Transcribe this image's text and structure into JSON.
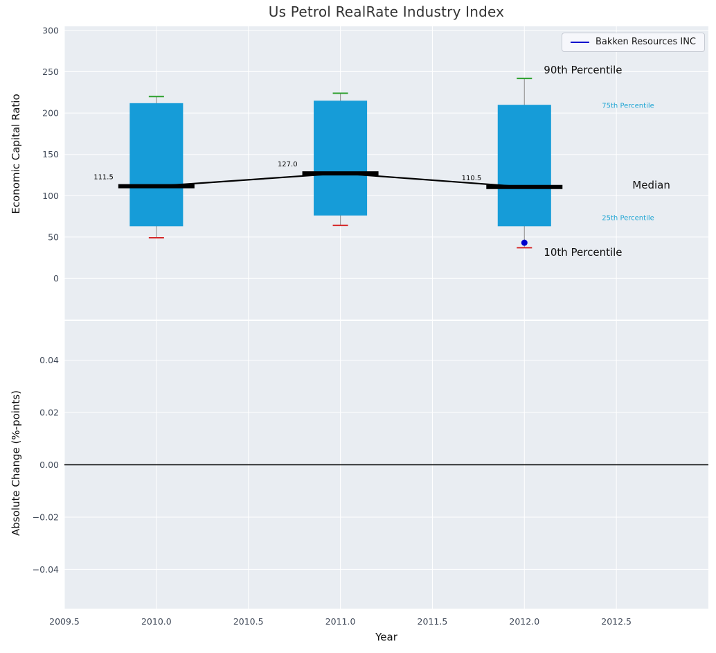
{
  "title": "Us Petrol RealRate Industry Index",
  "legend": {
    "label": "Bakken Resources INC"
  },
  "annotations": {
    "p90": "90th Percentile",
    "p75": "75th Percentile",
    "median": "Median",
    "p25": "25th Percentile",
    "p10": "10th Percentile"
  },
  "colors": {
    "plot_bg": "#e9edf2",
    "grid": "#ffffff",
    "box_fill": "#169cd8",
    "median_line": "#000000",
    "whisker": "#999999",
    "cap_top": "#2ca02c",
    "cap_bottom": "#d62728",
    "company_point": "#0000cd",
    "tick_label": "#414a59",
    "percentile_label": "#1fa5d3",
    "zero_line": "#000000"
  },
  "chart_data": [
    {
      "type": "boxplot",
      "panel": "top",
      "ylabel": "Economic Capital Ratio",
      "x": [
        2010,
        2011,
        2012
      ],
      "p10": [
        49,
        64,
        37
      ],
      "p25": [
        63,
        76,
        63
      ],
      "median": [
        111.5,
        127.0,
        110.5
      ],
      "p75": [
        212,
        215,
        210
      ],
      "p90": [
        220,
        224,
        242
      ],
      "median_labels": [
        "111.5",
        "127.0",
        "110.5"
      ],
      "company_series": {
        "name": "Bakken Resources INC",
        "points": [
          {
            "x": 2012,
            "y": 43
          }
        ]
      },
      "xlim": [
        2009.5,
        2013.0
      ],
      "ylim": [
        -50,
        305
      ],
      "yticks": [
        0,
        50,
        100,
        150,
        200,
        250,
        300
      ],
      "xticks": [
        2009.5,
        2010.0,
        2010.5,
        2011.0,
        2011.5,
        2012.0,
        2012.5
      ],
      "grid": true,
      "legend_position": "upper right"
    },
    {
      "type": "line",
      "panel": "bottom",
      "ylabel": "Absolute Change (%-points)",
      "xlabel": "Year",
      "series": [],
      "zero_line": 0.0,
      "xlim": [
        2009.5,
        2013.0
      ],
      "ylim": [
        -0.055,
        0.055
      ],
      "yticks": [
        -0.04,
        -0.02,
        0.0,
        0.02,
        0.04
      ],
      "xticks": [
        2009.5,
        2010.0,
        2010.5,
        2011.0,
        2011.5,
        2012.0,
        2012.5
      ],
      "grid": true
    }
  ]
}
